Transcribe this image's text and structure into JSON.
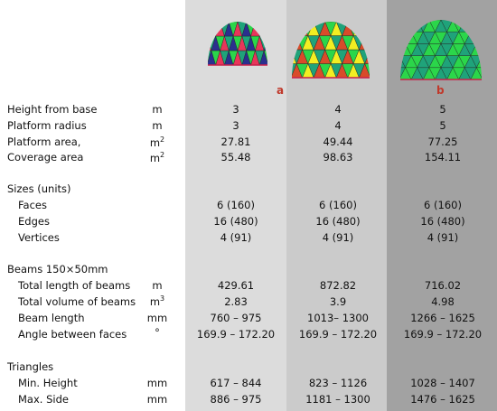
{
  "header": {
    "label_a": "a",
    "label_b": "b"
  },
  "rows": {
    "height": {
      "label": "Height from base",
      "unit": "m",
      "a": "3",
      "b": "4",
      "c": "5"
    },
    "radius": {
      "label": "Platform radius",
      "unit": "m",
      "a": "3",
      "b": "4",
      "c": "5"
    },
    "area": {
      "label": "Platform area,",
      "unit": "m",
      "unit_sup": "2",
      "a": "27.81",
      "b": "49.44",
      "c": "77.25"
    },
    "coverage": {
      "label": "Coverage area",
      "unit": "m",
      "unit_sup": "2",
      "a": "55.48",
      "b": "98.63",
      "c": "154.11"
    }
  },
  "sizes": {
    "title": "Sizes (units)",
    "faces": {
      "label": "Faces",
      "a": "6 (160)",
      "b": "6 (160)",
      "c": "6 (160)"
    },
    "edges": {
      "label": "Edges",
      "a": "16 (480)",
      "b": "16 (480)",
      "c": "16 (480)"
    },
    "vertices": {
      "label": "Vertices",
      "a": "4 (91)",
      "b": "4 (91)",
      "c": "4 (91)"
    }
  },
  "beams": {
    "title": "Beams 150×50mm",
    "total_length": {
      "label": "Total length of beams",
      "unit": "m",
      "a": "429.61",
      "b": "872.82",
      "c": "716.02"
    },
    "total_volume": {
      "label": "Total volume of beams",
      "unit": "m",
      "unit_sup": "3",
      "a": "2.83",
      "b": "3.9",
      "c": "4.98"
    },
    "beam_length": {
      "label": "Beam length",
      "unit": "mm",
      "a": "760 – 975",
      "b": "1013– 1300",
      "c": "1266 – 1625"
    },
    "angle": {
      "label": "Angle between faces",
      "unit": "°",
      "a": "169.9 – 172.20",
      "b": "169.9 – 172.20",
      "c": "169.9 – 172.20"
    }
  },
  "triangles": {
    "title": "Triangles",
    "min_height": {
      "label": "Min. Height",
      "unit": "mm",
      "a": "617 – 844",
      "b": "823 – 1126",
      "c": "1028 – 1407"
    },
    "max_side": {
      "label": "Max. Side",
      "unit": "mm",
      "a": "886 – 975",
      "b": "1181 – 1300",
      "c": "1476 – 1625"
    }
  },
  "colors": {
    "col_a_bg": "#dcdcdc",
    "col_b_bg": "#cbcbcb",
    "col_c_bg": "#a2a2a2",
    "tag": "#c0392b",
    "dome_palette": [
      "#e8365a",
      "#2bd64a",
      "#f2ee22",
      "#2b2f8f",
      "#1fa37a",
      "#d94b2a"
    ]
  }
}
